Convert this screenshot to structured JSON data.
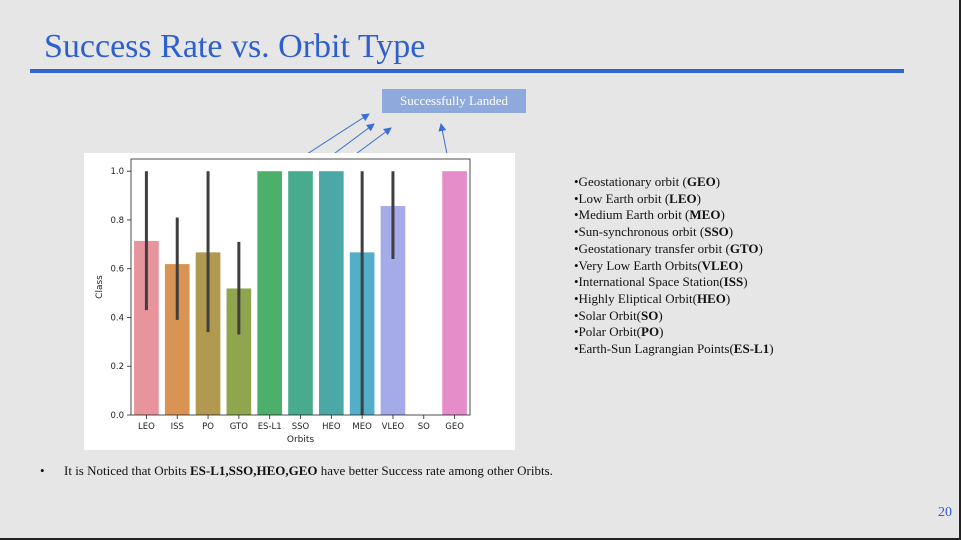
{
  "slide": {
    "title": "Success Rate vs. Orbit Type",
    "callout": "Successfully Landed",
    "page_number": "20"
  },
  "legend_items": [
    {
      "prefix": "•Geostationary orbit (",
      "abbr": "GEO",
      "suffix": ")"
    },
    {
      "prefix": "•Low Earth orbit (",
      "abbr": "LEO",
      "suffix": ")"
    },
    {
      "prefix": "•Medium Earth orbit (",
      "abbr": "MEO",
      "suffix": ")"
    },
    {
      "prefix": "•Sun-synchronous orbit (",
      "abbr": "SSO",
      "suffix": ")"
    },
    {
      "prefix": "•Geostationary transfer orbit (",
      "abbr": "GTO",
      "suffix": ")"
    },
    {
      "prefix": "•Very Low Earth Orbits(",
      "abbr": "VLEO",
      "suffix": ")"
    },
    {
      "prefix": "•International Space Station(",
      "abbr": "ISS",
      "suffix": ")"
    },
    {
      "prefix": "•Highly Eliptical Orbit(",
      "abbr": "HEO",
      "suffix": ")"
    },
    {
      "prefix": "•Solar Orbit(",
      "abbr": "SO",
      "suffix": ")"
    },
    {
      "prefix": "•Polar Orbit(",
      "abbr": "PO",
      "suffix": ")"
    },
    {
      "prefix": "•Earth-Sun Lagrangian Points(",
      "abbr": "ES-L1",
      "suffix": ")"
    }
  ],
  "note": {
    "bullet": "•",
    "prefix": "It is Noticed that Orbits ",
    "bold": "ES-L1,SSO,HEO,GEO",
    "suffix": " have better Success rate among other Oribts."
  },
  "chart_data": {
    "type": "bar",
    "xlabel": "Orbits",
    "ylabel": "Class",
    "ylim": [
      0,
      1.05
    ],
    "yticks": [
      0.0,
      0.2,
      0.4,
      0.6,
      0.8,
      1.0
    ],
    "ytick_labels": [
      "0.0",
      "0.2",
      "0.4",
      "0.6",
      "0.8",
      "1.0"
    ],
    "categories": [
      "LEO",
      "ISS",
      "PO",
      "GTO",
      "ES-L1",
      "SSO",
      "HEO",
      "MEO",
      "VLEO",
      "SO",
      "GEO"
    ],
    "values": [
      0.714,
      0.619,
      0.667,
      0.519,
      1.0,
      1.0,
      1.0,
      0.667,
      0.857,
      0.0,
      1.0
    ],
    "error_bars": [
      [
        0.43,
        1.0
      ],
      [
        0.39,
        0.81
      ],
      [
        0.34,
        1.0
      ],
      [
        0.33,
        0.71
      ],
      null,
      null,
      null,
      [
        0.0,
        1.0
      ],
      [
        0.64,
        1.0
      ],
      null,
      null
    ],
    "colors": [
      "#e8949d",
      "#d99454",
      "#b19a4f",
      "#8fa64e",
      "#4db06a",
      "#48ab8e",
      "#4aa9a6",
      "#52aec9",
      "#a5abe9",
      "#d58fe6",
      "#e58dc8"
    ],
    "grid": false
  }
}
